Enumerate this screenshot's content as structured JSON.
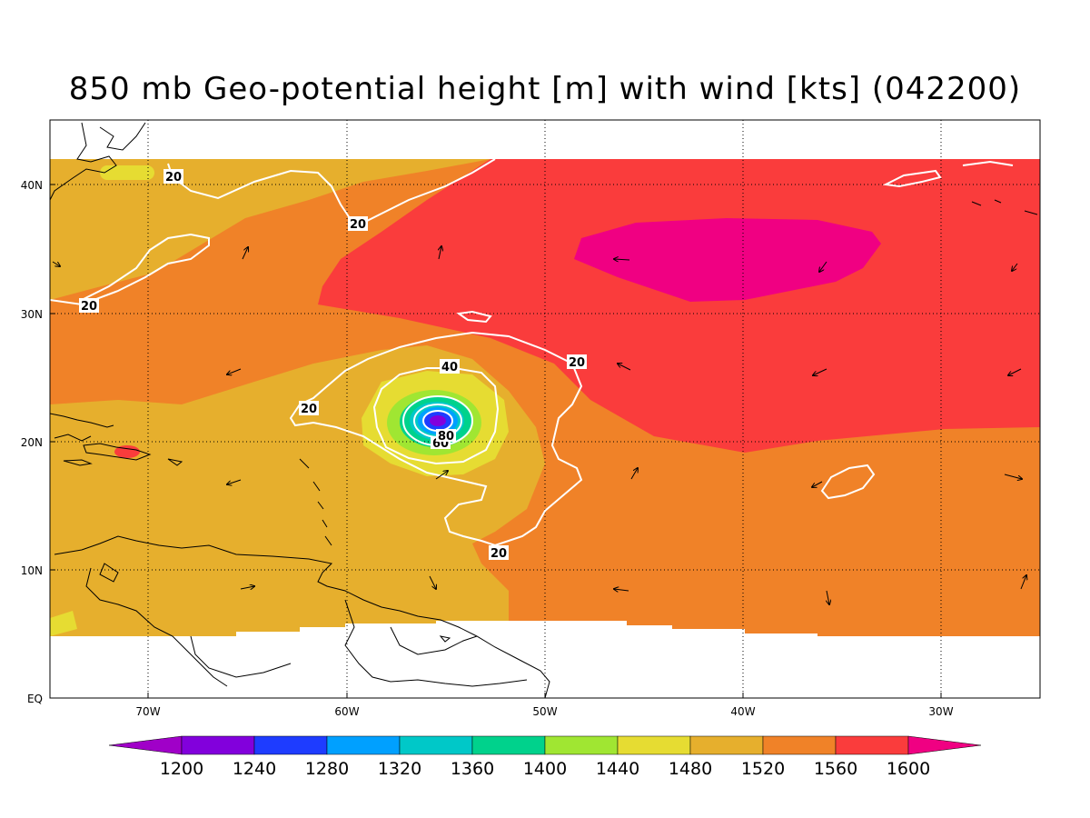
{
  "title": "850 mb Geo-potential height [m] with wind [kts] (042200)",
  "axes": {
    "lon_ticks": [
      "70W",
      "60W",
      "50W",
      "40W",
      "30W"
    ],
    "lat_ticks": [
      "40N",
      "30N",
      "20N",
      "10N",
      "EQ"
    ]
  },
  "colorbar": {
    "levels": [
      "1200",
      "1240",
      "1280",
      "1320",
      "1360",
      "1400",
      "1440",
      "1480",
      "1520",
      "1560",
      "1600"
    ],
    "colors": [
      "#a000c8",
      "#8200dc",
      "#1e3cff",
      "#00a0ff",
      "#00c8c8",
      "#00d28c",
      "#a0e632",
      "#e6dc32",
      "#e6af2d",
      "#f08228",
      "#fa3c3c",
      "#f00082"
    ]
  },
  "contour_labels": [
    "20",
    "20",
    "20",
    "20",
    "20",
    "20",
    "40",
    "60",
    "80"
  ]
}
